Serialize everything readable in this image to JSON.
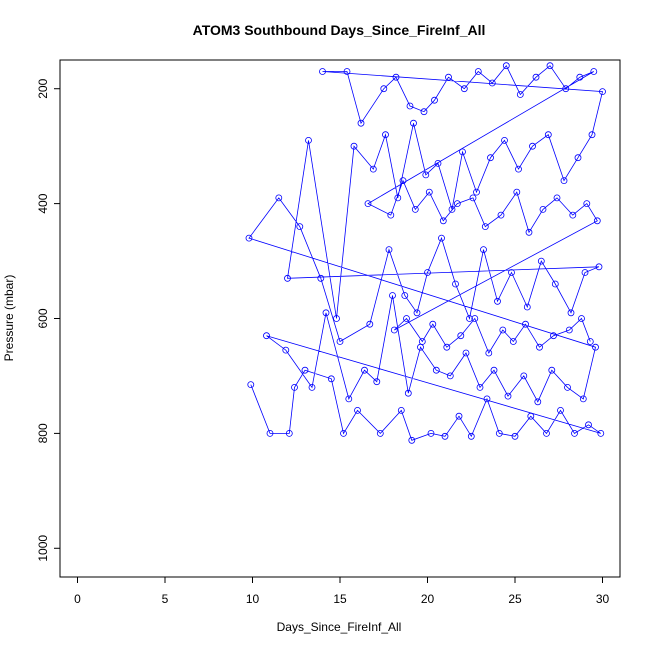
{
  "chart_data": {
    "type": "scatter",
    "title": "ATOM3 Southbound Days_Since_FireInf_All",
    "xlabel": "Days_Since_FireInf_All",
    "ylabel": "Pressure (mbar)",
    "xlim": [
      -1,
      31
    ],
    "ylim": [
      1050,
      150
    ],
    "y_axis_reversed": true,
    "x_ticks": [
      0,
      5,
      10,
      15,
      20,
      25,
      30
    ],
    "y_ticks": [
      200,
      400,
      600,
      800,
      1000
    ],
    "grid": false,
    "legend": "none",
    "series_color": "#0000ff",
    "marker": "open-circle",
    "connected_by_lines": true,
    "series": [
      {
        "x": [
          9.9,
          11.0,
          12.1,
          12.4,
          13.0,
          14.5,
          15.2,
          16.0,
          17.3,
          18.5,
          19.1,
          20.2,
          21.0,
          21.8,
          22.5,
          23.4,
          24.1,
          25.0,
          25.9,
          26.8,
          27.6,
          28.4,
          29.2,
          29.9,
          10.8,
          11.9,
          13.4,
          14.2,
          15.5,
          16.4,
          17.1,
          18.0,
          18.9,
          19.6,
          20.5,
          21.3,
          22.2,
          23.0,
          23.8,
          24.6,
          25.5,
          26.3,
          27.1,
          28.0,
          28.9,
          29.6,
          9.8,
          11.5,
          12.7,
          13.9,
          15.0,
          16.7,
          17.8,
          18.7,
          19.4,
          20.0,
          20.8,
          21.6,
          22.4,
          23.2,
          24.0,
          24.8,
          25.7,
          26.5,
          27.3,
          28.2,
          29.0,
          29.8,
          12.0,
          13.2,
          14.8,
          15.8,
          16.9,
          17.6,
          18.3,
          19.2,
          19.9,
          20.6,
          21.4,
          22.0,
          22.8,
          23.6,
          24.4,
          25.2,
          26.0,
          26.9,
          27.8,
          28.6,
          29.4,
          30.0,
          14.0,
          15.4,
          16.2,
          17.5,
          18.2,
          19.0,
          19.8,
          20.4,
          21.2,
          22.1,
          22.9,
          23.7,
          24.5,
          25.3,
          26.2,
          27.0,
          27.9,
          28.7,
          29.5,
          16.6,
          17.9,
          18.6,
          19.3,
          20.1,
          20.9,
          21.7,
          22.6,
          23.3,
          24.2,
          25.1,
          25.8,
          26.6,
          27.4,
          28.3,
          29.1,
          29.7,
          18.1,
          18.8,
          19.7,
          20.3,
          21.1,
          21.9,
          22.7,
          23.5,
          24.3,
          24.9,
          25.6,
          26.4,
          27.2,
          28.1,
          28.8,
          29.3
        ],
        "y": [
          715,
          800,
          800,
          720,
          690,
          705,
          800,
          760,
          800,
          760,
          812,
          800,
          805,
          770,
          805,
          740,
          800,
          805,
          770,
          800,
          760,
          800,
          785,
          800,
          630,
          655,
          720,
          590,
          740,
          690,
          710,
          560,
          730,
          650,
          690,
          700,
          660,
          720,
          690,
          735,
          700,
          745,
          690,
          720,
          740,
          650,
          460,
          390,
          440,
          530,
          640,
          610,
          480,
          560,
          590,
          520,
          460,
          540,
          600,
          480,
          570,
          520,
          580,
          500,
          540,
          590,
          520,
          510,
          530,
          290,
          600,
          300,
          340,
          280,
          390,
          260,
          350,
          330,
          410,
          310,
          380,
          320,
          290,
          340,
          300,
          280,
          360,
          320,
          280,
          205,
          170,
          170,
          260,
          200,
          180,
          230,
          240,
          220,
          180,
          200,
          170,
          190,
          160,
          210,
          180,
          160,
          200,
          180,
          170,
          400,
          420,
          360,
          410,
          380,
          430,
          400,
          390,
          440,
          420,
          380,
          450,
          410,
          390,
          420,
          400,
          430,
          620,
          600,
          640,
          610,
          650,
          630,
          600,
          660,
          620,
          640,
          610,
          650,
          630,
          620,
          600,
          640
        ]
      }
    ]
  }
}
